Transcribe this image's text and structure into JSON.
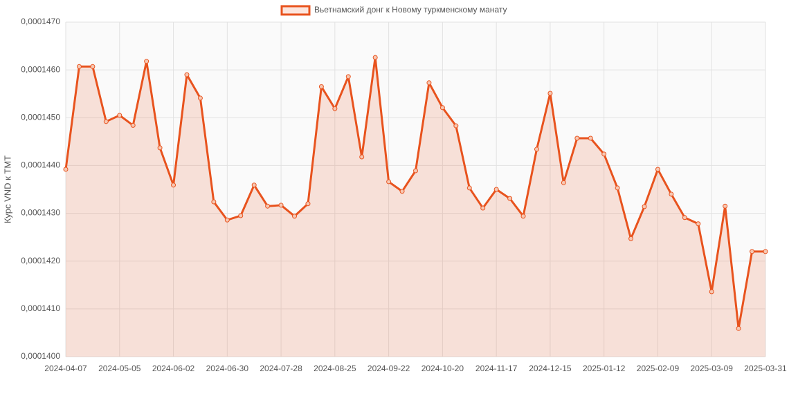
{
  "chart_data": {
    "type": "line",
    "y_label": "Курс VND к TMT",
    "categories": [
      "2024-04-07",
      null,
      null,
      null,
      "2024-05-05",
      null,
      null,
      null,
      "2024-06-02",
      null,
      null,
      null,
      "2024-06-30",
      null,
      null,
      null,
      "2024-07-28",
      null,
      null,
      null,
      "2024-08-25",
      null,
      null,
      null,
      "2024-09-22",
      null,
      null,
      null,
      "2024-10-20",
      null,
      null,
      null,
      "2024-11-17",
      null,
      null,
      null,
      "2024-12-15",
      null,
      null,
      null,
      "2025-01-12",
      null,
      null,
      null,
      "2025-02-09",
      null,
      null,
      null,
      "2025-03-09",
      null,
      null,
      null,
      "2025-03-31"
    ],
    "series": [
      {
        "name": "Вьетнамский донг к Новому туркменскому манату",
        "color": "#e8531e",
        "fill": "rgba(232,83,30,0.15)",
        "values": [
          0.00014392,
          0.00014607,
          0.00014607,
          0.00014492,
          0.00014505,
          0.00014484,
          0.00014618,
          0.00014437,
          0.00014359,
          0.0001459,
          0.00014541,
          0.00014324,
          0.00014286,
          0.00014295,
          0.00014359,
          0.00014315,
          0.00014317,
          0.00014294,
          0.0001432,
          0.00014565,
          0.00014519,
          0.00014586,
          0.00014418,
          0.00014626,
          0.00014366,
          0.00014346,
          0.00014389,
          0.00014573,
          0.00014521,
          0.00014483,
          0.00014353,
          0.00014311,
          0.0001435,
          0.00014331,
          0.00014294,
          0.00014434,
          0.00014551,
          0.00014364,
          0.00014457,
          0.00014457,
          0.00014424,
          0.00014353,
          0.00014247,
          0.00014314,
          0.00014392,
          0.0001434,
          0.00014291,
          0.00014278,
          0.00014136,
          0.00014315,
          0.00014059,
          0.0001422,
          0.0001422
        ]
      }
    ],
    "ylim": [
      0.00014,
      0.000147
    ],
    "yticks": [
      {
        "value": 0.00014,
        "label": "0,0001400"
      },
      {
        "value": 0.000141,
        "label": "0,0001410"
      },
      {
        "value": 0.000142,
        "label": "0,0001420"
      },
      {
        "value": 0.000143,
        "label": "0,0001430"
      },
      {
        "value": 0.000144,
        "label": "0,0001440"
      },
      {
        "value": 0.000145,
        "label": "0,0001450"
      },
      {
        "value": 0.000146,
        "label": "0,0001460"
      },
      {
        "value": 0.000147,
        "label": "0,0001470"
      }
    ],
    "grid": true,
    "legend": "top"
  }
}
